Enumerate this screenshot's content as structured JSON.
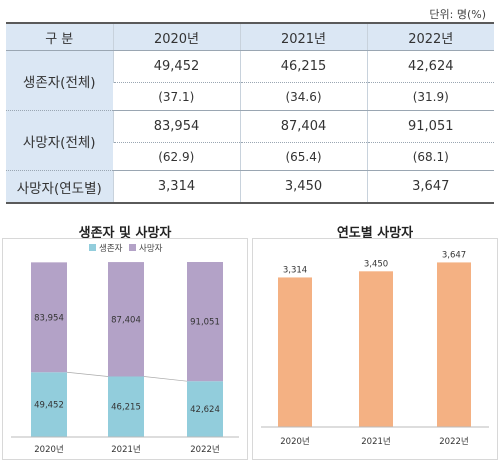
{
  "table": {
    "unit_label": "단위: 명(%)",
    "header": {
      "category": "구 분",
      "years": [
        "2020년",
        "2021년",
        "2022년"
      ]
    },
    "rows": [
      {
        "label": "생존자(전체)",
        "values": [
          "49,452",
          "46,215",
          "42,624"
        ],
        "percents": [
          "(37.1)",
          "(34.6)",
          "(31.9)"
        ]
      },
      {
        "label": "사망자(전체)",
        "values": [
          "83,954",
          "87,404",
          "91,051"
        ],
        "percents": [
          "(62.9)",
          "(65.4)",
          "(68.1)"
        ]
      },
      {
        "label": "사망자(연도별)",
        "values": [
          "3,314",
          "3,450",
          "3,647"
        ]
      }
    ]
  },
  "chart_data": [
    {
      "type": "bar",
      "stacked": true,
      "title": "생존자 및 사망자",
      "categories": [
        "2020년",
        "2021년",
        "2022년"
      ],
      "series": [
        {
          "name": "생존자",
          "values": [
            49452,
            46215,
            42624
          ],
          "color": "#92cddc"
        },
        {
          "name": "사망자",
          "values": [
            83954,
            87404,
            91051
          ],
          "color": "#b3a2c7"
        }
      ],
      "legend": "top",
      "grid": false
    },
    {
      "type": "bar",
      "title": "연도별 사망자",
      "categories": [
        "2020년",
        "2021년",
        "2022년"
      ],
      "values": [
        3314,
        3450,
        3647
      ],
      "color": "#f4b183",
      "grid": false
    }
  ]
}
